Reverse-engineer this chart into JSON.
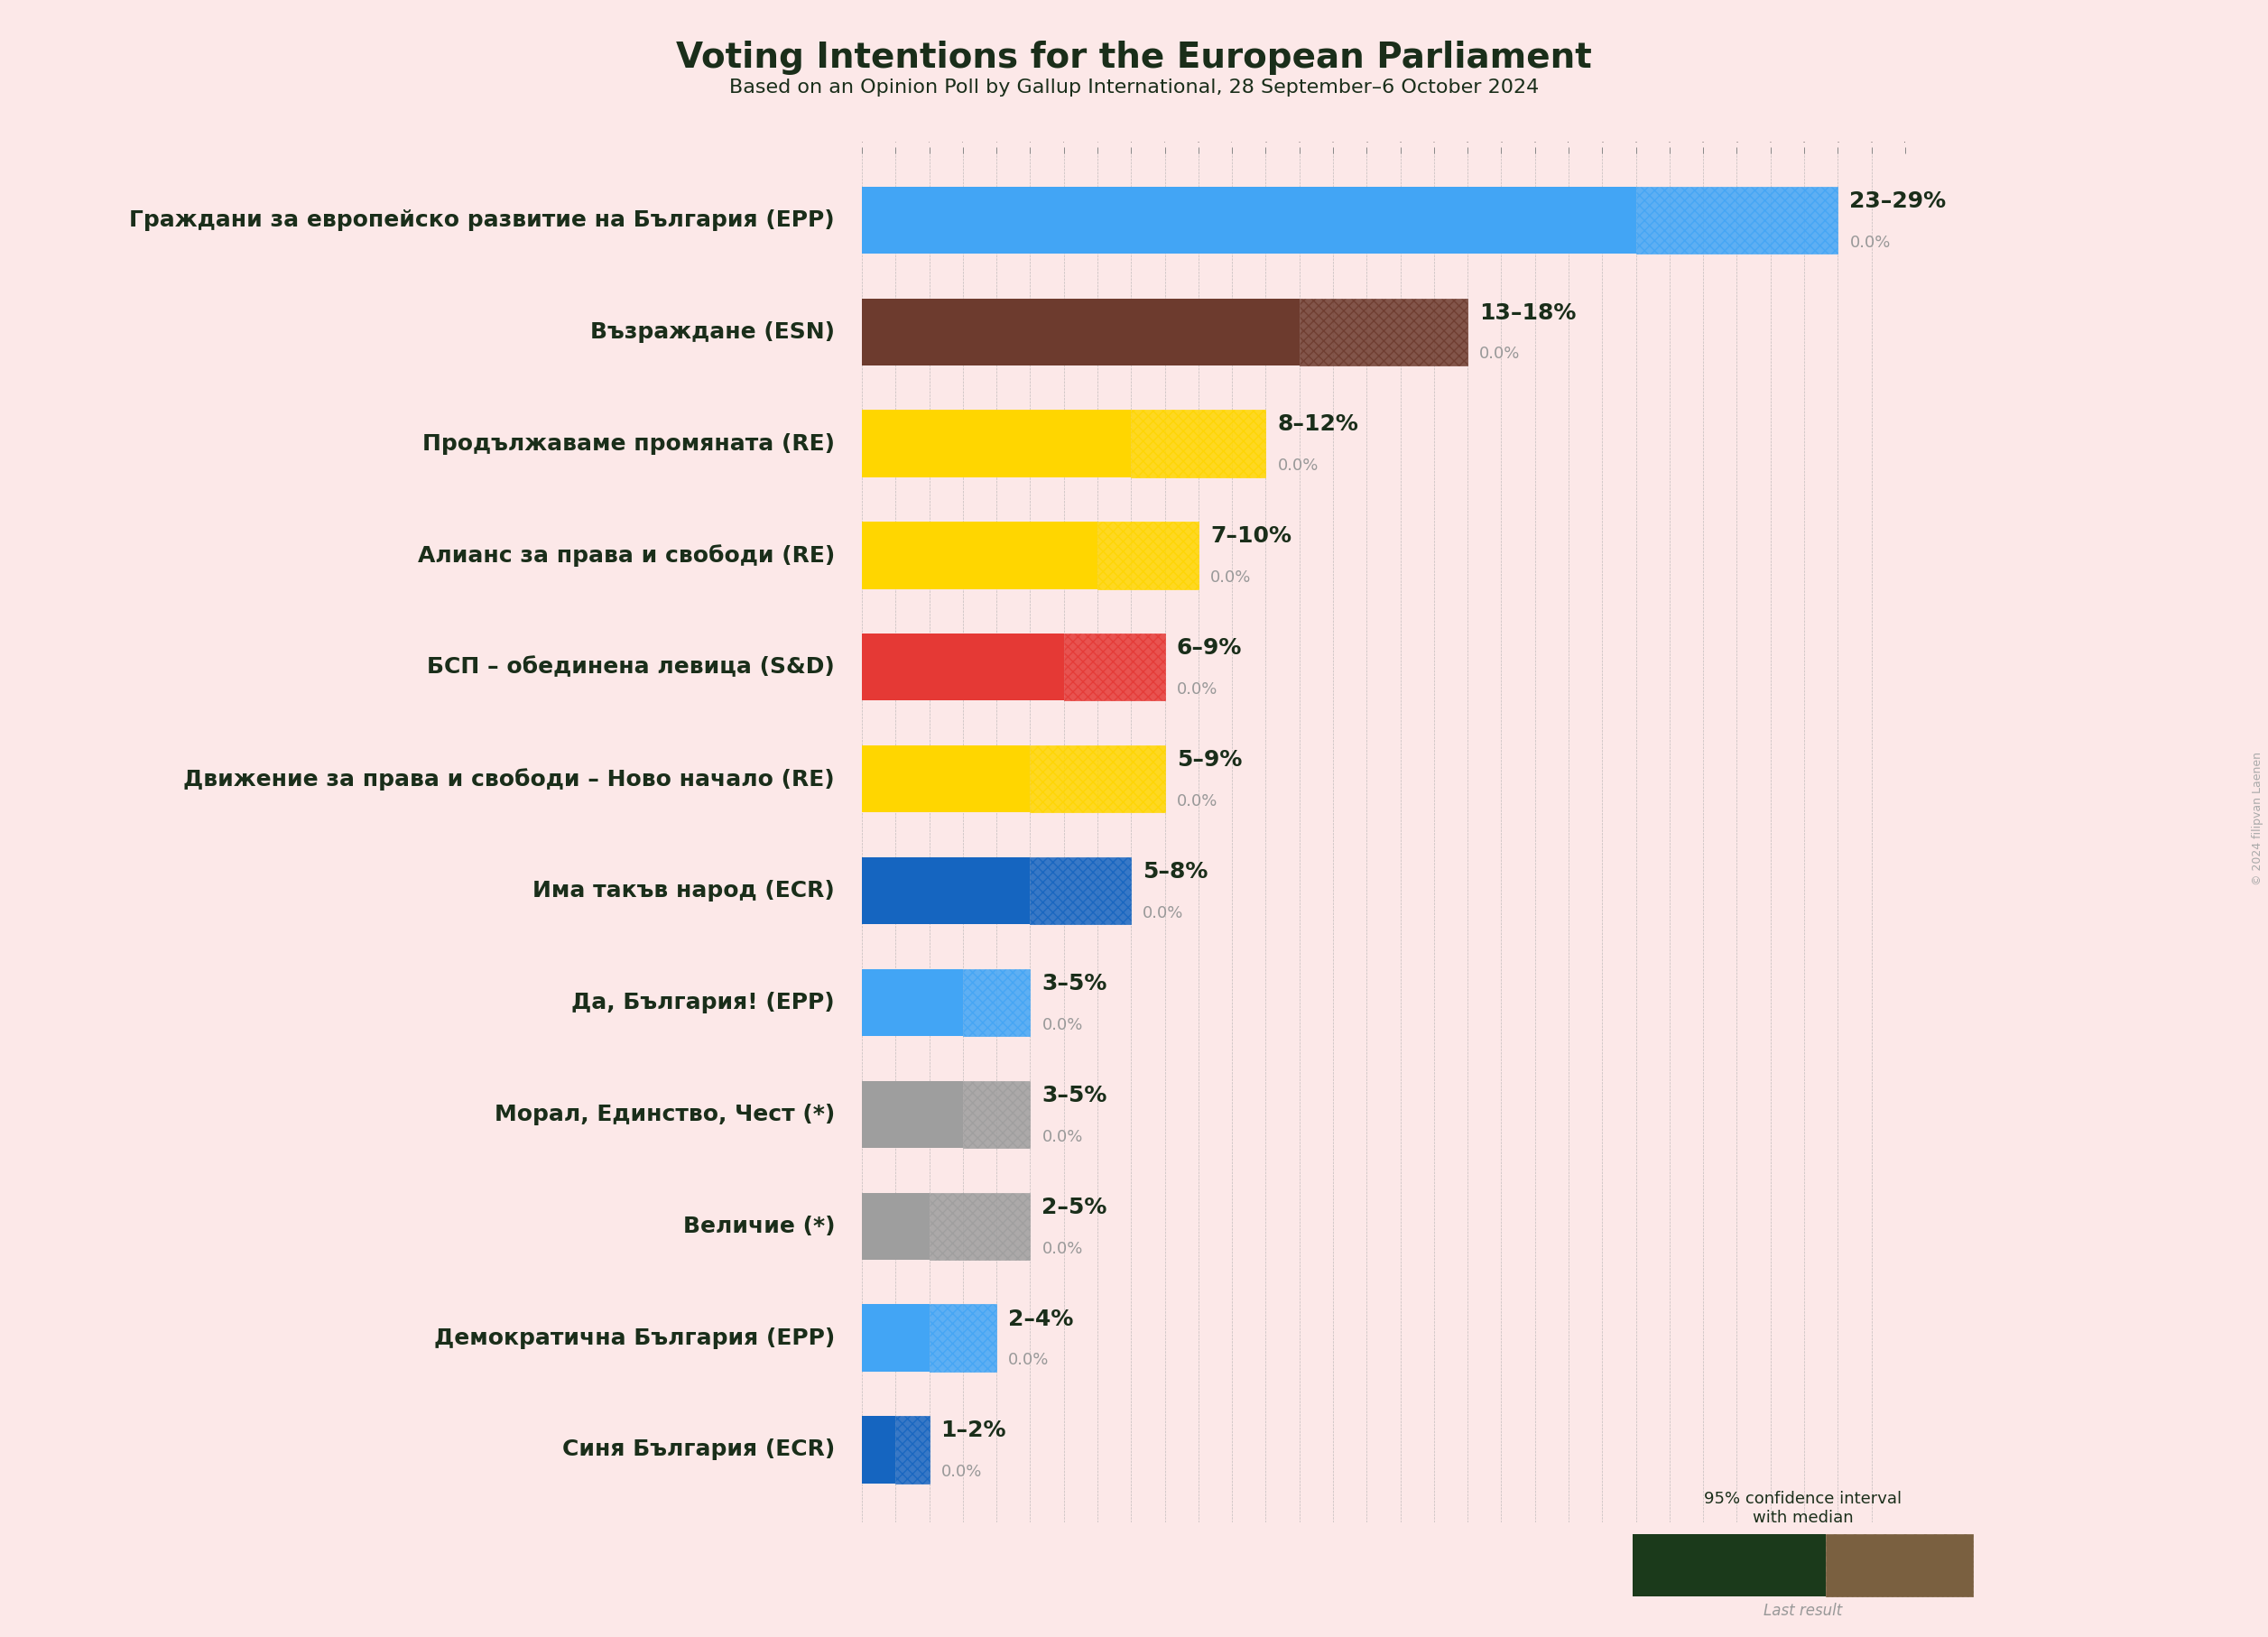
{
  "title": "Voting Intentions for the European Parliament",
  "subtitle": "Based on an Opinion Poll by Gallup International, 28 September–6 October 2024",
  "copyright": "© 2024 filipvan Laenen",
  "background_color": "#fce8e8",
  "text_color": "#1a2e1a",
  "parties": [
    {
      "name": "Граждани за европейско развитие на България (EPP)",
      "low": 23,
      "high": 29,
      "median": 23,
      "last": 0.0,
      "color": "#42a5f5"
    },
    {
      "name": "Възраждане (ESN)",
      "low": 13,
      "high": 18,
      "median": 13,
      "last": 0.0,
      "color": "#6d3b2e"
    },
    {
      "name": "Продължаваме промяната (RE)",
      "low": 8,
      "high": 12,
      "median": 8,
      "last": 0.0,
      "color": "#ffd600"
    },
    {
      "name": "Алианс за права и свободи (RE)",
      "low": 7,
      "high": 10,
      "median": 7,
      "last": 0.0,
      "color": "#ffd600"
    },
    {
      "name": "БСП – обединена левица (S&D)",
      "low": 6,
      "high": 9,
      "median": 6,
      "last": 0.0,
      "color": "#e53935"
    },
    {
      "name": "Движение за права и свободи – Ново начало (RE)",
      "low": 5,
      "high": 9,
      "median": 5,
      "last": 0.0,
      "color": "#ffd600"
    },
    {
      "name": "Има такъв народ (ECR)",
      "low": 5,
      "high": 8,
      "median": 5,
      "last": 0.0,
      "color": "#1565c0"
    },
    {
      "name": "Да, България! (EPP)",
      "low": 3,
      "high": 5,
      "median": 3,
      "last": 0.0,
      "color": "#42a5f5"
    },
    {
      "name": "Морал, Единство, Чест (*)",
      "low": 3,
      "high": 5,
      "median": 3,
      "last": 0.0,
      "color": "#9e9e9e"
    },
    {
      "name": "Величие (*)",
      "low": 2,
      "high": 5,
      "median": 2,
      "last": 0.0,
      "color": "#9e9e9e"
    },
    {
      "name": "Демократична България (EPP)",
      "low": 2,
      "high": 4,
      "median": 2,
      "last": 0.0,
      "color": "#42a5f5"
    },
    {
      "name": "Синя България (ECR)",
      "low": 1,
      "high": 2,
      "median": 1,
      "last": 0.0,
      "color": "#1565c0"
    }
  ],
  "xlim": [
    0,
    31
  ],
  "bar_height": 0.6,
  "legend_solid_color": "#1b3a1b",
  "legend_hatch_color": "#7a6040",
  "title_fontsize": 28,
  "subtitle_fontsize": 16,
  "label_fontsize": 18,
  "party_fontsize": 18,
  "pct_fontsize": 18,
  "subpct_fontsize": 13
}
